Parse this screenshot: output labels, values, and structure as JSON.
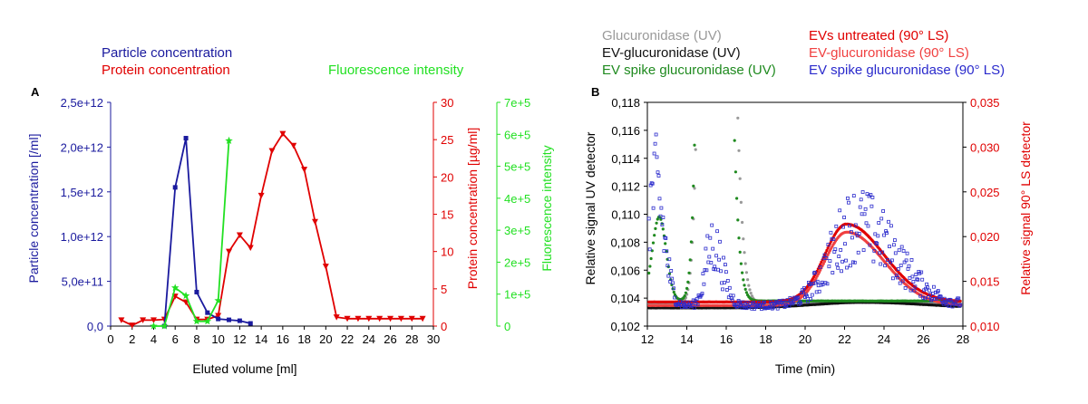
{
  "chart_data": [
    {
      "panel": "A",
      "type": "line",
      "xlabel": "Eluted volume [ml]",
      "x_ticks": [
        "0",
        "2",
        "4",
        "6",
        "8",
        "10",
        "12",
        "14",
        "16",
        "18",
        "20",
        "22",
        "24",
        "26",
        "28",
        "30"
      ],
      "xlim": [
        0,
        30
      ],
      "legend": [
        "Particle concentration",
        "Protein concentration",
        "Fluorescence intensity"
      ],
      "axes": [
        {
          "side": "left",
          "label": "Particle concentration [/ml]",
          "color": "#1a1a9e",
          "ticks": [
            "0,0",
            "5,0e+11",
            "1,0e+12",
            "1,5e+12",
            "2,0e+12",
            "2,5e+12"
          ],
          "ylim": [
            0,
            2500000000000.0
          ]
        },
        {
          "side": "right",
          "label": "Protein concentration [µg/ml]",
          "color": "#e00000",
          "ticks": [
            "0",
            "5",
            "10",
            "15",
            "20",
            "25",
            "30"
          ],
          "ylim": [
            0,
            30
          ]
        },
        {
          "side": "right2",
          "label": "Fluorescence intensity",
          "color": "#22e022",
          "ticks": [
            "0",
            "1e+5",
            "2e+5",
            "3e+5",
            "4e+5",
            "5e+5",
            "6e+5",
            "7e+5"
          ],
          "ylim": [
            0,
            700000
          ]
        }
      ],
      "series": [
        {
          "name": "Particle concentration",
          "axis": "left",
          "color": "#1a1a9e",
          "marker": "square",
          "x": [
            5,
            6,
            7,
            8,
            9,
            10,
            11,
            12,
            13
          ],
          "y": [
            0.0,
            1550000000000.0,
            2100000000000.0,
            380000000000.0,
            150000000000.0,
            80000000000.0,
            70000000000.0,
            60000000000.0,
            30000000000.0
          ]
        },
        {
          "name": "Protein concentration",
          "axis": "right",
          "color": "#e00000",
          "marker": "triangle-down",
          "x": [
            1,
            2,
            3,
            4,
            5,
            6,
            7,
            8,
            9,
            10,
            11,
            12,
            13,
            14,
            15,
            16,
            17,
            18,
            19,
            20,
            21,
            22,
            23,
            24,
            25,
            26,
            27,
            28,
            29
          ],
          "y": [
            0.8,
            0.1,
            0.8,
            0.8,
            0.9,
            4.0,
            3.2,
            0.9,
            0.9,
            1.4,
            10.0,
            12.2,
            10.5,
            17.5,
            23.5,
            25.8,
            24.2,
            21.0,
            14.0,
            8.0,
            1.2,
            1.0,
            1.0,
            1.0,
            1.0,
            1.0,
            1.0,
            1.0,
            1.0
          ]
        },
        {
          "name": "Fluorescence intensity",
          "axis": "right2",
          "color": "#22e022",
          "marker": "star",
          "x": [
            4,
            5,
            6,
            7,
            8,
            9,
            10,
            11
          ],
          "y": [
            0,
            0,
            120000,
            95000,
            15000,
            15000,
            80000,
            580000
          ]
        }
      ]
    },
    {
      "panel": "B",
      "type": "scatter",
      "xlabel": "Time (min)",
      "x_ticks": [
        "12",
        "14",
        "16",
        "18",
        "20",
        "22",
        "24",
        "26",
        "28"
      ],
      "xlim": [
        12,
        28
      ],
      "legend_col1": [
        "Glucuronidase (UV)",
        "EV-glucuronidase (UV)",
        "EV spike glucuronidase (UV)"
      ],
      "legend_col2": [
        "EVs untreated (90° LS)",
        "EV-glucuronidase (90° LS)",
        "EV spike glucuronidase (90° LS)"
      ],
      "axes": [
        {
          "side": "left",
          "label": "Relative signal UV detector",
          "color": "#000000",
          "ticks": [
            "0,102",
            "0,104",
            "0,106",
            "0,108",
            "0,110",
            "0,112",
            "0,114",
            "0,116",
            "0,118"
          ],
          "ylim": [
            0.102,
            0.118
          ]
        },
        {
          "side": "right",
          "label": "Relative signal 90° LS detector",
          "color": "#e00000",
          "ticks": [
            "0,010",
            "0,015",
            "0,020",
            "0,025",
            "0,030",
            "0,035"
          ],
          "ylim": [
            0.01,
            0.035
          ]
        }
      ],
      "series": [
        {
          "name": "Glucuronidase (UV)",
          "axis": "left",
          "color": "#999999",
          "kind": "peaks",
          "base": 0.1036,
          "peaks": [
            [
              15.35,
              0.1124,
              0.42,
              0.6
            ],
            [
              23.0,
              0.0001,
              2.0,
              2.0
            ]
          ]
        },
        {
          "name": "EV-glucuronidase (UV)",
          "axis": "left",
          "color": "#111111",
          "kind": "peaks",
          "base": 0.1033,
          "peaks": [
            [
              23.0,
              0.0004,
              2.5,
              3.0
            ]
          ]
        },
        {
          "name": "EV spike glucuronidase (UV)",
          "axis": "left",
          "color": "#1f8a1f",
          "kind": "peaks",
          "base": 0.1038,
          "peaks": [
            [
              15.25,
              0.1124,
              0.4,
              0.55
            ],
            [
              12.6,
              0.006,
              0.35,
              0.35
            ]
          ]
        },
        {
          "name": "EVs untreated (90° LS)",
          "axis": "right",
          "color": "#e00000",
          "kind": "peaks",
          "base": 0.0127,
          "peaks": [
            [
              22.1,
              0.0087,
              1.1,
              1.9
            ]
          ]
        },
        {
          "name": "EV-glucuronidase (90° LS)",
          "axis": "right",
          "color": "#f04040",
          "kind": "peaks",
          "base": 0.0123,
          "peaks": [
            [
              22.1,
              0.0082,
              1.1,
              1.9
            ]
          ]
        },
        {
          "name": "EV spike glucuronidase (90° LS)",
          "axis": "right",
          "color": "#2a2acc",
          "kind": "noisy",
          "base": 0.0123,
          "peaks": [
            [
              15.3,
              0.0068,
              0.35,
              0.5
            ],
            [
              22.6,
              0.009,
              1.3,
              2.0
            ],
            [
              12.4,
              0.013,
              0.45,
              0.45
            ]
          ]
        }
      ]
    }
  ]
}
